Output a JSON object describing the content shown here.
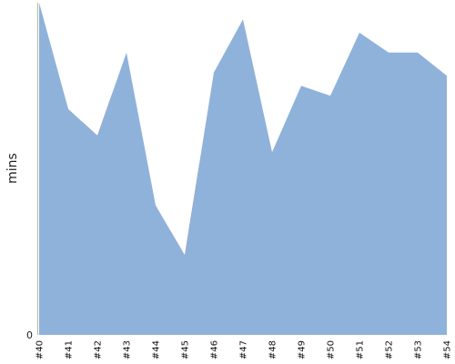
{
  "chart_data": {
    "type": "area",
    "ylabel": "mins",
    "y_ticks": [
      "0"
    ],
    "ylim": [
      0,
      100
    ],
    "categories": [
      "#40",
      "#41",
      "#42",
      "#43",
      "#44",
      "#45",
      "#46",
      "#47",
      "#48",
      "#49",
      "#50",
      "#51",
      "#52",
      "#53",
      "#54"
    ],
    "values": [
      100,
      68,
      60,
      85,
      39,
      24,
      79,
      95,
      55,
      75,
      72,
      91,
      85,
      85,
      78
    ],
    "highlighted_categories": [
      "#42",
      "#45"
    ],
    "grid": false,
    "colors": {
      "area": "#8fb2da",
      "highlight": "#f25555",
      "axis": "#b5b5a0",
      "text": "#222222"
    }
  }
}
